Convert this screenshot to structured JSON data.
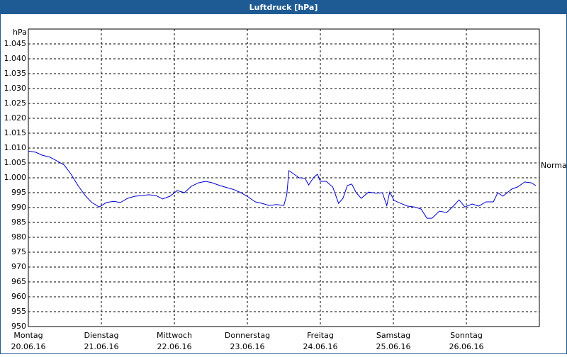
{
  "chart_data": {
    "type": "line",
    "title": "Luftdruck [hPa]",
    "y_label": "hPa",
    "annotation": {
      "text": "Normal",
      "value": 1004
    },
    "xlim": [
      0,
      7
    ],
    "xticks": [
      {
        "value": 0,
        "label": "Montag"
      },
      {
        "value": 1,
        "label": "Dienstag"
      },
      {
        "value": 2,
        "label": "Mittwoch"
      },
      {
        "value": 3,
        "label": "Donnerstag"
      },
      {
        "value": 4,
        "label": "Freitag"
      },
      {
        "value": 5,
        "label": "Samstag"
      },
      {
        "value": 6,
        "label": "Sonntag"
      }
    ],
    "xtick_dates": [
      "20.06.16",
      "21.06.16",
      "22.06.16",
      "23.06.16",
      "24.06.16",
      "25.06.16",
      "26.06.16"
    ],
    "ylim": [
      950,
      1050
    ],
    "yticks": [
      950,
      955,
      960,
      965,
      970,
      975,
      980,
      985,
      990,
      995,
      {
        "value": 1000,
        "label": "1.000"
      },
      {
        "value": 1005,
        "label": "1.005"
      },
      {
        "value": 1010,
        "label": "1.010"
      },
      {
        "value": 1015,
        "label": "1.015"
      },
      {
        "value": 1020,
        "label": "1.020"
      },
      {
        "value": 1025,
        "label": "1.025"
      },
      {
        "value": 1030,
        "label": "1.030"
      },
      {
        "value": 1035,
        "label": "1.035"
      },
      {
        "value": 1040,
        "label": "1.040"
      },
      {
        "value": 1045,
        "label": "1.045"
      }
    ],
    "grid": true,
    "series": [
      {
        "color": "#0000cc",
        "x": [
          0,
          0.1,
          0.19,
          0.29,
          0.39,
          0.49,
          0.58,
          0.68,
          0.78,
          0.87,
          0.97,
          1.07,
          1.17,
          1.26,
          1.36,
          1.46,
          1.55,
          1.65,
          1.75,
          1.84,
          1.94,
          2.04,
          2.14,
          2.23,
          2.33,
          2.43,
          2.52,
          2.62,
          2.72,
          2.82,
          2.91,
          3.01,
          3.11,
          3.2,
          3.3,
          3.4,
          3.5,
          3.54,
          3.57,
          3.64,
          3.71,
          3.79,
          3.84,
          3.91,
          3.96,
          4.0,
          4.08,
          4.17,
          4.25,
          4.31,
          4.37,
          4.43,
          4.49,
          4.56,
          4.66,
          4.76,
          4.85,
          4.91,
          4.95,
          5.01,
          5.1,
          5.19,
          5.29,
          5.38,
          5.46,
          5.53,
          5.63,
          5.73,
          5.83,
          5.9,
          5.98,
          6.08,
          6.17,
          6.27,
          6.37,
          6.43,
          6.5,
          6.56,
          6.62,
          6.7,
          6.8,
          6.89,
          6.95
        ],
        "values": [
          1009,
          1008.6,
          1007.6,
          1007,
          1005.7,
          1004.3,
          1001.4,
          997.4,
          994,
          991.7,
          990.2,
          991.7,
          992.1,
          991.7,
          993.1,
          993.8,
          994,
          994.3,
          994,
          992.9,
          993.8,
          995.7,
          995,
          997.1,
          998.3,
          998.8,
          998.3,
          997.4,
          996.7,
          996,
          995,
          993.6,
          991.9,
          991.4,
          990.7,
          991,
          990.7,
          994.3,
          1002.4,
          1001.2,
          1000,
          999.8,
          997.6,
          1000.2,
          1001.2,
          998.8,
          998.8,
          996.9,
          991.4,
          993.1,
          997.4,
          997.9,
          995,
          993.1,
          995.2,
          994.8,
          995,
          990.7,
          995.2,
          992.4,
          991.4,
          990.5,
          990.2,
          989.5,
          986.4,
          986.4,
          988.8,
          988.3,
          990.7,
          992.6,
          990.2,
          991.2,
          990.5,
          991.9,
          991.9,
          995,
          993.8,
          995,
          996.2,
          996.9,
          998.6,
          998.3,
          997.4
        ]
      }
    ]
  }
}
